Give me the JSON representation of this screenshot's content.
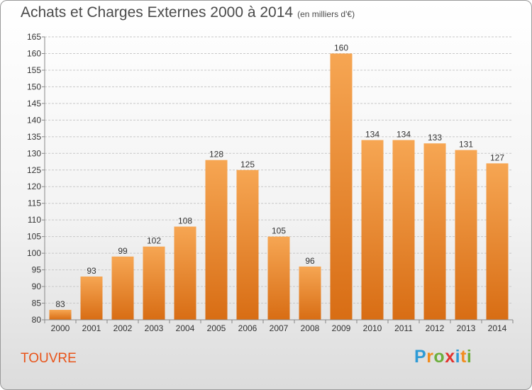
{
  "header": {
    "title": "Achats et Charges Externes 2000 à 2014",
    "unit": "(en milliers d'€)"
  },
  "footer": {
    "place": "TOUVRE",
    "logo_letters": [
      "P",
      "r",
      "o",
      "x",
      "i",
      "t",
      "i"
    ],
    "logo_colors": [
      "#2e9bd6",
      "#f28c1e",
      "#6cae3c",
      "#e2332e",
      "#2e9bd6",
      "#f28c1e",
      "#6cae3c"
    ]
  },
  "colors": {
    "bar_top": "#f6a653",
    "bar_bottom": "#d86d14",
    "grid": "#c8c8c8",
    "axis": "#888888"
  },
  "chart_data": {
    "type": "bar",
    "title": "Achats et Charges Externes 2000 à 2014",
    "ylabel": "",
    "xlabel": "",
    "categories": [
      "2000",
      "2001",
      "2002",
      "2003",
      "2004",
      "2005",
      "2006",
      "2007",
      "2008",
      "2009",
      "2010",
      "2011",
      "2012",
      "2013",
      "2014"
    ],
    "values": [
      83,
      93,
      99,
      102,
      108,
      128,
      125,
      105,
      96,
      160,
      134,
      134,
      133,
      131,
      127
    ],
    "ylim": [
      80,
      165
    ],
    "ytick_step": 5,
    "grid": true
  }
}
